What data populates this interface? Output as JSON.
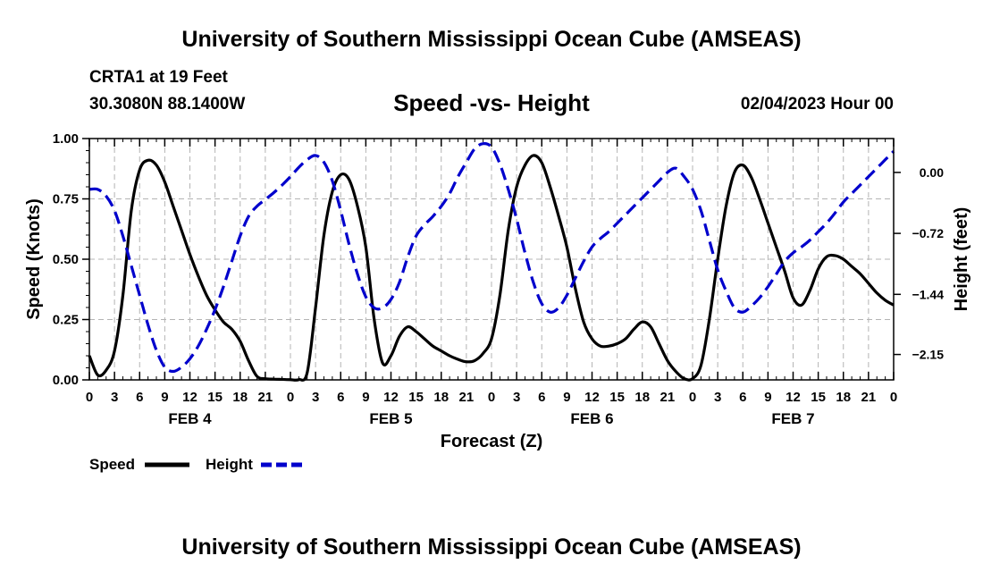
{
  "header": {
    "title": "University of Southern Mississippi Ocean Cube (AMSEAS)",
    "station": "CRTA1 at 19 Feet",
    "coords": "30.3080N  88.1400W",
    "chart_title": "Speed -vs- Height",
    "datetime": "02/04/2023 Hour 00"
  },
  "footer": {
    "title": "University of Southern Mississippi Ocean Cube (AMSEAS)"
  },
  "chart_data": {
    "type": "line",
    "title": "Speed -vs- Height",
    "xlabel": "Forecast (Z)",
    "ylabel": "Speed (Knots)",
    "y2label": "Height (feet)",
    "x_unit": "hours since 2023-02-04 00Z",
    "xlim": [
      0,
      96
    ],
    "ylim": [
      0,
      1
    ],
    "y2lim": [
      -2.45,
      0.4
    ],
    "x_ticks": [
      0,
      3,
      6,
      9,
      12,
      15,
      18,
      21,
      24,
      27,
      30,
      33,
      36,
      39,
      42,
      45,
      48,
      51,
      54,
      57,
      60,
      63,
      66,
      69,
      72,
      75,
      78,
      81,
      84,
      87,
      90,
      93,
      96
    ],
    "x_tick_labels": [
      "0",
      "3",
      "6",
      "9",
      "12",
      "15",
      "18",
      "21",
      "0",
      "3",
      "6",
      "9",
      "12",
      "15",
      "18",
      "21",
      "0",
      "3",
      "6",
      "9",
      "12",
      "15",
      "18",
      "21",
      "0",
      "3",
      "6",
      "9",
      "12",
      "15",
      "18",
      "21",
      "0"
    ],
    "day_labels": [
      {
        "label": "FEB 4",
        "x": 12
      },
      {
        "label": "FEB 5",
        "x": 36
      },
      {
        "label": "FEB 6",
        "x": 60
      },
      {
        "label": "FEB 7",
        "x": 84
      }
    ],
    "y_ticks": [
      0,
      0.25,
      0.5,
      0.75,
      1.0
    ],
    "y_tick_labels": [
      "0.00",
      "0.25",
      "0.50",
      "0.75",
      "1.00"
    ],
    "y2_ticks": [
      0.0,
      -0.72,
      -1.44,
      -2.15
    ],
    "y2_tick_labels": [
      "0.00",
      "−0.72",
      "−1.44",
      "−2.15"
    ],
    "grid": true,
    "legend_position": "bottom-left",
    "series": [
      {
        "name": "Speed",
        "axis": "left",
        "color": "#000000",
        "dash": "solid",
        "x": [
          0,
          1,
          2,
          3,
          4,
          5,
          6,
          7,
          8,
          9,
          10,
          11,
          12,
          13,
          14,
          15,
          16,
          17,
          18,
          19,
          20,
          21,
          22,
          23,
          24,
          25,
          26,
          27,
          28,
          29,
          30,
          31,
          32,
          33,
          34,
          35,
          36,
          37,
          38,
          39,
          40,
          41,
          42,
          43,
          44,
          45,
          46,
          47,
          48,
          49,
          50,
          51,
          52,
          53,
          54,
          55,
          56,
          57,
          58,
          59,
          60,
          61,
          62,
          63,
          64,
          65,
          66,
          67,
          68,
          69,
          70,
          71,
          72,
          73,
          74,
          75,
          76,
          77,
          78,
          79,
          80,
          81,
          82,
          83,
          84,
          85,
          86,
          87,
          88,
          89,
          90,
          91,
          92,
          93,
          94,
          95,
          96
        ],
        "values": [
          0.1,
          0.02,
          0.04,
          0.12,
          0.35,
          0.7,
          0.87,
          0.91,
          0.89,
          0.82,
          0.72,
          0.62,
          0.52,
          0.43,
          0.35,
          0.29,
          0.24,
          0.21,
          0.16,
          0.08,
          0.015,
          0.005,
          0.003,
          0.002,
          0.001,
          0.001,
          0.03,
          0.3,
          0.6,
          0.78,
          0.85,
          0.83,
          0.72,
          0.55,
          0.25,
          0.07,
          0.1,
          0.18,
          0.22,
          0.2,
          0.17,
          0.14,
          0.12,
          0.1,
          0.085,
          0.075,
          0.08,
          0.11,
          0.17,
          0.35,
          0.62,
          0.8,
          0.89,
          0.93,
          0.9,
          0.8,
          0.68,
          0.55,
          0.38,
          0.24,
          0.17,
          0.14,
          0.14,
          0.15,
          0.17,
          0.21,
          0.24,
          0.22,
          0.15,
          0.08,
          0.035,
          0.005,
          0.005,
          0.06,
          0.25,
          0.5,
          0.72,
          0.86,
          0.89,
          0.84,
          0.75,
          0.65,
          0.55,
          0.45,
          0.34,
          0.31,
          0.37,
          0.46,
          0.51,
          0.515,
          0.5,
          0.47,
          0.44,
          0.4,
          0.36,
          0.33,
          0.31
        ]
      },
      {
        "name": "Height",
        "axis": "right",
        "color": "#0000cc",
        "dash": "dashed",
        "x": [
          0,
          1,
          2,
          3,
          4,
          5,
          6,
          7,
          8,
          9,
          10,
          11,
          12,
          13,
          14,
          15,
          16,
          17,
          18,
          19,
          20,
          21,
          22,
          23,
          24,
          25,
          26,
          27,
          28,
          29,
          30,
          31,
          32,
          33,
          34,
          35,
          36,
          37,
          38,
          39,
          40,
          41,
          42,
          43,
          44,
          45,
          46,
          47,
          48,
          49,
          50,
          51,
          52,
          53,
          54,
          55,
          56,
          57,
          58,
          59,
          60,
          61,
          62,
          63,
          64,
          65,
          66,
          67,
          68,
          69,
          70,
          71,
          72,
          73,
          74,
          75,
          76,
          77,
          78,
          79,
          80,
          81,
          82,
          83,
          84,
          85,
          86,
          87,
          88,
          89,
          90,
          91,
          92,
          93,
          94,
          95,
          96
        ],
        "values": [
          -0.2,
          -0.2,
          -0.28,
          -0.45,
          -0.75,
          -1.1,
          -1.45,
          -1.8,
          -2.1,
          -2.3,
          -2.35,
          -2.3,
          -2.2,
          -2.05,
          -1.85,
          -1.62,
          -1.35,
          -1.05,
          -0.75,
          -0.52,
          -0.4,
          -0.32,
          -0.24,
          -0.15,
          -0.05,
          0.06,
          0.15,
          0.2,
          0.12,
          -0.1,
          -0.45,
          -0.85,
          -1.2,
          -1.47,
          -1.6,
          -1.6,
          -1.5,
          -1.3,
          -1.0,
          -0.75,
          -0.62,
          -0.52,
          -0.4,
          -0.25,
          -0.05,
          0.12,
          0.28,
          0.34,
          0.3,
          0.1,
          -0.2,
          -0.55,
          -0.95,
          -1.3,
          -1.55,
          -1.65,
          -1.6,
          -1.45,
          -1.25,
          -1.05,
          -0.88,
          -0.78,
          -0.7,
          -0.6,
          -0.5,
          -0.4,
          -0.3,
          -0.2,
          -0.1,
          0.0,
          0.05,
          -0.05,
          -0.2,
          -0.45,
          -0.8,
          -1.15,
          -1.4,
          -1.6,
          -1.65,
          -1.58,
          -1.48,
          -1.35,
          -1.2,
          -1.05,
          -0.95,
          -0.88,
          -0.8,
          -0.7,
          -0.6,
          -0.48,
          -0.35,
          -0.25,
          -0.15,
          -0.05,
          0.05,
          0.15,
          0.25
        ]
      }
    ]
  }
}
